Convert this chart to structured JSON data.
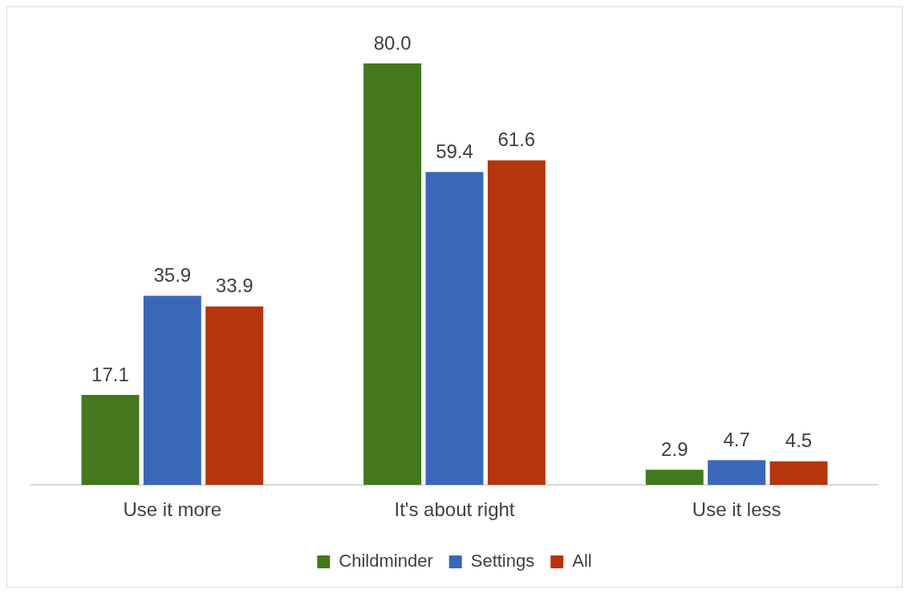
{
  "chart_data": {
    "type": "bar",
    "categories": [
      "Use it more",
      "It's about right",
      "Use it less"
    ],
    "series": [
      {
        "name": "Childminder",
        "color": "#44781e",
        "values": [
          17.1,
          80.0,
          2.9
        ],
        "value_labels": [
          "17.1",
          "80.0",
          "2.9"
        ]
      },
      {
        "name": "Settings",
        "color": "#3a67b8",
        "values": [
          35.9,
          59.4,
          4.7
        ],
        "value_labels": [
          "35.9",
          "59.4",
          "4.7"
        ]
      },
      {
        "name": "All",
        "color": "#b5350e",
        "values": [
          33.9,
          61.6,
          4.5
        ],
        "value_labels": [
          "33.9",
          "61.6",
          "4.5"
        ]
      }
    ],
    "legend": "bottom",
    "grid": false
  }
}
